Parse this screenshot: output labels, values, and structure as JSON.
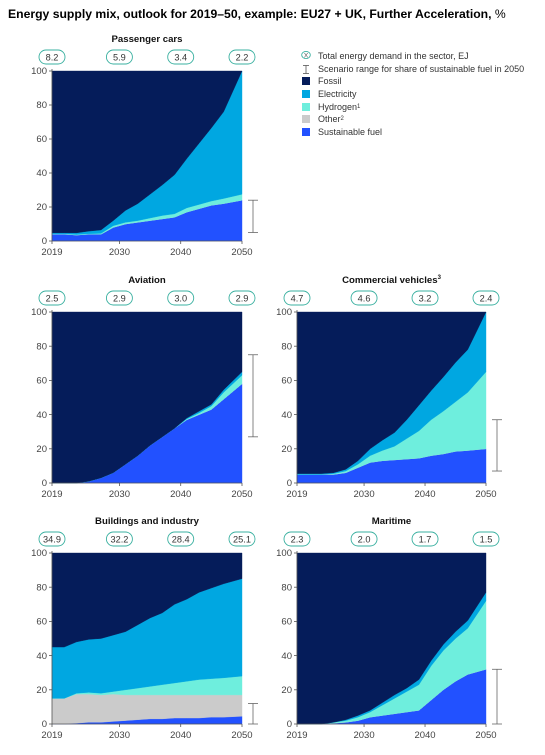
{
  "title": "Energy supply mix, outlook for 2019–50, example: EU27 + UK, Further Acceleration,",
  "title_unit": "%",
  "legend": {
    "demand_marker": "X",
    "demand_label": "Total energy demand in the sector, EJ",
    "range_label": "Scenario range for share of sustainable fuel in 2050",
    "series": [
      {
        "label": "Fossil",
        "sup": "",
        "color": "#051c5a"
      },
      {
        "label": "Electricity",
        "sup": "",
        "color": "#00a7e1"
      },
      {
        "label": "Hydrogen",
        "sup": "1",
        "color": "#6eeedd"
      },
      {
        "label": "Other",
        "sup": "2",
        "color": "#cbcbcb"
      },
      {
        "label": "Sustainable fuel",
        "sup": "",
        "color": "#2251ff"
      }
    ]
  },
  "colors": {
    "fossil": "#051c5a",
    "electricity": "#00a7e1",
    "hydrogen": "#6eeedd",
    "other": "#cbcbcb",
    "sustainable": "#2251ff",
    "axis": "#555555",
    "bubble": "#3ab0a0"
  },
  "chart_data": [
    {
      "type": "area",
      "title": "Passenger cars",
      "title_sup": "",
      "x": [
        2019,
        2021,
        2023,
        2025,
        2027,
        2029,
        2031,
        2033,
        2035,
        2037,
        2039,
        2041,
        2043,
        2045,
        2047,
        2050
      ],
      "xticks": [
        2019,
        2030,
        2040,
        2050
      ],
      "yticks": [
        0,
        20,
        40,
        60,
        80,
        100
      ],
      "ylim": [
        0,
        100
      ],
      "stack_order": [
        "sustainable",
        "other",
        "hydrogen",
        "electricity",
        "fossil"
      ],
      "series": [
        {
          "name": "Sustainable fuel",
          "key": "sustainable",
          "values": [
            4,
            4,
            3.5,
            4,
            4,
            8,
            10,
            11,
            12,
            13,
            14,
            17,
            19,
            21,
            22,
            24
          ]
        },
        {
          "name": "Other",
          "key": "other",
          "values": [
            0,
            0,
            0,
            0,
            0,
            0,
            0,
            0,
            0,
            0,
            0,
            0,
            0,
            0,
            0,
            0
          ]
        },
        {
          "name": "Hydrogen",
          "key": "hydrogen",
          "values": [
            0.3,
            0.3,
            0.3,
            0.3,
            0.5,
            1,
            1,
            1,
            1.5,
            2,
            2,
            2.5,
            2.5,
            2.5,
            3,
            3.5
          ]
        },
        {
          "name": "Electricity",
          "key": "electricity",
          "values": [
            0.5,
            0.5,
            1,
            1.5,
            2,
            3,
            7,
            10,
            14,
            18,
            23,
            29,
            36,
            43,
            51,
            72.5
          ]
        },
        {
          "name": "Fossil",
          "key": "fossil",
          "values": [
            95.2,
            95.2,
            95.2,
            94.2,
            93.5,
            88,
            82,
            78,
            72.5,
            67,
            61,
            51.5,
            42.5,
            33.5,
            24,
            0
          ]
        }
      ],
      "demand": [
        {
          "x": 2019,
          "label": "8.2"
        },
        {
          "x": 2030,
          "label": "5.9"
        },
        {
          "x": 2040,
          "label": "3.4"
        },
        {
          "x": 2050,
          "label": "2.2"
        }
      ],
      "range": [
        5,
        24
      ]
    },
    {
      "type": "area",
      "title": "Aviation",
      "title_sup": "",
      "x": [
        2019,
        2021,
        2023,
        2025,
        2027,
        2029,
        2031,
        2033,
        2035,
        2037,
        2039,
        2041,
        2043,
        2045,
        2047,
        2050
      ],
      "xticks": [
        2019,
        2030,
        2040,
        2050
      ],
      "yticks": [
        0,
        20,
        40,
        60,
        80,
        100
      ],
      "ylim": [
        0,
        100
      ],
      "stack_order": [
        "sustainable",
        "other",
        "hydrogen",
        "electricity",
        "fossil"
      ],
      "series": [
        {
          "name": "Sustainable fuel",
          "key": "sustainable",
          "values": [
            0,
            0,
            0,
            1,
            3,
            6,
            11,
            16,
            22,
            27,
            32,
            37,
            40,
            43,
            49,
            58
          ]
        },
        {
          "name": "Other",
          "key": "other",
          "values": [
            0,
            0,
            0,
            0,
            0,
            0,
            0,
            0,
            0,
            0,
            0,
            0,
            0,
            0,
            0,
            0
          ]
        },
        {
          "name": "Hydrogen",
          "key": "hydrogen",
          "values": [
            0,
            0,
            0,
            0,
            0,
            0,
            0,
            0,
            0,
            0,
            0,
            0.5,
            1,
            2,
            4,
            5
          ]
        },
        {
          "name": "Electricity",
          "key": "electricity",
          "values": [
            0,
            0,
            0,
            0,
            0,
            0,
            0,
            0,
            0,
            0,
            0,
            0.5,
            1,
            1,
            1.5,
            2
          ]
        },
        {
          "name": "Fossil",
          "key": "fossil",
          "values": [
            100,
            100,
            100,
            99,
            97,
            94,
            89,
            84,
            78,
            73,
            68,
            62,
            58,
            54,
            45.5,
            35
          ]
        }
      ],
      "demand": [
        {
          "x": 2019,
          "label": "2.5"
        },
        {
          "x": 2030,
          "label": "2.9"
        },
        {
          "x": 2040,
          "label": "3.0"
        },
        {
          "x": 2050,
          "label": "2.9"
        }
      ],
      "range": [
        27,
        75
      ]
    },
    {
      "type": "area",
      "title": "Commercial vehicles",
      "title_sup": "3",
      "x": [
        2019,
        2021,
        2023,
        2025,
        2027,
        2029,
        2031,
        2033,
        2035,
        2037,
        2039,
        2041,
        2043,
        2045,
        2047,
        2050
      ],
      "xticks": [
        2019,
        2030,
        2040,
        2050
      ],
      "yticks": [
        0,
        20,
        40,
        60,
        80,
        100
      ],
      "ylim": [
        0,
        100
      ],
      "stack_order": [
        "sustainable",
        "other",
        "hydrogen",
        "electricity",
        "fossil"
      ],
      "series": [
        {
          "name": "Sustainable fuel",
          "key": "sustainable",
          "values": [
            5,
            5,
            5,
            5,
            6,
            9,
            12,
            13,
            13.5,
            14,
            14.5,
            16,
            17,
            18.5,
            19,
            20
          ]
        },
        {
          "name": "Other",
          "key": "other",
          "values": [
            0,
            0,
            0,
            0,
            0,
            0,
            0,
            0,
            0,
            0,
            0,
            0,
            0,
            0,
            0,
            0
          ]
        },
        {
          "name": "Hydrogen",
          "key": "hydrogen",
          "values": [
            0,
            0,
            0,
            0.5,
            1,
            2,
            4,
            6,
            8,
            12,
            16,
            21,
            25,
            29,
            34,
            45
          ]
        },
        {
          "name": "Electricity",
          "key": "electricity",
          "values": [
            0.5,
            0.5,
            0.5,
            0.5,
            1,
            2,
            4,
            6,
            8,
            11,
            15,
            17,
            20,
            23,
            25,
            35
          ]
        },
        {
          "name": "Fossil",
          "key": "fossil",
          "values": [
            94.5,
            94.5,
            94.5,
            94,
            92,
            87,
            80,
            75,
            70.5,
            63,
            54.5,
            46,
            38,
            29.5,
            22,
            0
          ]
        }
      ],
      "demand": [
        {
          "x": 2019,
          "label": "4.7"
        },
        {
          "x": 2030,
          "label": "4.6"
        },
        {
          "x": 2040,
          "label": "3.2"
        },
        {
          "x": 2050,
          "label": "2.4"
        }
      ],
      "range": [
        7,
        37
      ]
    },
    {
      "type": "area",
      "title": "Buildings and industry",
      "title_sup": "",
      "x": [
        2019,
        2021,
        2023,
        2025,
        2027,
        2029,
        2031,
        2033,
        2035,
        2037,
        2039,
        2041,
        2043,
        2045,
        2047,
        2050
      ],
      "xticks": [
        2019,
        2030,
        2040,
        2050
      ],
      "yticks": [
        0,
        20,
        40,
        60,
        80,
        100
      ],
      "ylim": [
        0,
        100
      ],
      "stack_order": [
        "sustainable",
        "other",
        "hydrogen",
        "electricity",
        "fossil"
      ],
      "series": [
        {
          "name": "Sustainable fuel",
          "key": "sustainable",
          "values": [
            0,
            0,
            0.5,
            1,
            1,
            1.5,
            2,
            2.5,
            3,
            3,
            3.5,
            3.5,
            3.5,
            4,
            4,
            4.5
          ]
        },
        {
          "name": "Other",
          "key": "other",
          "values": [
            15,
            15,
            17,
            16.5,
            16,
            16,
            15,
            14.5,
            14,
            14,
            13.5,
            13.5,
            13.5,
            13,
            13,
            12.5
          ]
        },
        {
          "name": "Hydrogen",
          "key": "hydrogen",
          "values": [
            0,
            0,
            0.5,
            1,
            1,
            1.5,
            3,
            4,
            5,
            6,
            7,
            8,
            9,
            9.5,
            10,
            11
          ]
        },
        {
          "name": "Electricity",
          "key": "electricity",
          "values": [
            30,
            30,
            30,
            31,
            32,
            33,
            34,
            37,
            40,
            42,
            46,
            48,
            51,
            53,
            55,
            57
          ]
        },
        {
          "name": "Fossil",
          "key": "fossil",
          "values": [
            55,
            55,
            52,
            50.5,
            50,
            48,
            46,
            42,
            38,
            35,
            30,
            27,
            23,
            20.5,
            18,
            15
          ]
        }
      ],
      "demand": [
        {
          "x": 2019,
          "label": "34.9"
        },
        {
          "x": 2030,
          "label": "32.2"
        },
        {
          "x": 2040,
          "label": "28.4"
        },
        {
          "x": 2050,
          "label": "25.1"
        }
      ],
      "range": [
        0,
        12
      ]
    },
    {
      "type": "area",
      "title": "Maritime",
      "title_sup": "",
      "x": [
        2019,
        2021,
        2023,
        2025,
        2027,
        2029,
        2031,
        2033,
        2035,
        2037,
        2039,
        2041,
        2043,
        2045,
        2047,
        2050
      ],
      "xticks": [
        2019,
        2030,
        2040,
        2050
      ],
      "yticks": [
        0,
        20,
        40,
        60,
        80,
        100
      ],
      "ylim": [
        0,
        100
      ],
      "stack_order": [
        "sustainable",
        "other",
        "hydrogen",
        "electricity",
        "fossil"
      ],
      "series": [
        {
          "name": "Sustainable fuel",
          "key": "sustainable",
          "values": [
            0,
            0,
            0,
            0.5,
            1,
            2,
            4,
            5,
            6,
            7,
            8,
            14,
            20,
            25,
            29,
            32
          ]
        },
        {
          "name": "Other",
          "key": "other",
          "values": [
            0,
            0,
            0,
            0,
            0,
            0,
            0,
            0,
            0,
            0,
            0,
            0,
            0,
            0,
            0,
            0
          ]
        },
        {
          "name": "Hydrogen",
          "key": "hydrogen",
          "values": [
            0,
            0,
            0,
            0.5,
            1,
            2,
            3,
            6,
            9,
            12,
            15,
            20,
            23,
            25,
            27,
            40
          ]
        },
        {
          "name": "Electricity",
          "key": "electricity",
          "values": [
            0,
            0,
            0,
            0,
            0.5,
            1,
            1,
            1.5,
            2,
            2,
            3,
            3,
            3.5,
            4,
            4.5,
            5
          ]
        },
        {
          "name": "Fossil",
          "key": "fossil",
          "values": [
            100,
            100,
            100,
            99,
            97.5,
            95,
            92,
            87.5,
            83,
            79,
            74,
            63,
            53.5,
            46,
            39.5,
            23
          ]
        }
      ],
      "demand": [
        {
          "x": 2019,
          "label": "2.3"
        },
        {
          "x": 2030,
          "label": "2.0"
        },
        {
          "x": 2040,
          "label": "1.7"
        },
        {
          "x": 2050,
          "label": "1.5"
        }
      ],
      "range": [
        0,
        32
      ]
    }
  ]
}
